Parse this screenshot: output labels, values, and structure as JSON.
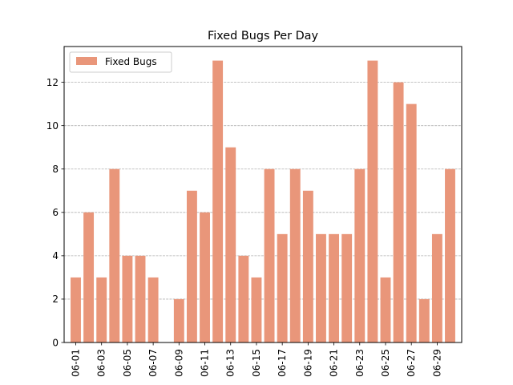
{
  "chart_data": {
    "type": "bar",
    "title": "Fixed Bugs Per Day",
    "xlabel": "",
    "ylabel": "",
    "categories": [
      "06-01",
      "06-02",
      "06-03",
      "06-04",
      "06-05",
      "06-06",
      "06-07",
      "06-08",
      "06-09",
      "06-10",
      "06-11",
      "06-12",
      "06-13",
      "06-14",
      "06-15",
      "06-16",
      "06-17",
      "06-18",
      "06-19",
      "06-20",
      "06-21",
      "06-22",
      "06-23",
      "06-24",
      "06-25",
      "06-26",
      "06-27",
      "06-28",
      "06-29",
      "06-30"
    ],
    "tick_labels": [
      "06-01",
      "06-03",
      "06-05",
      "06-07",
      "06-09",
      "06-11",
      "06-13",
      "06-15",
      "06-17",
      "06-19",
      "06-21",
      "06-23",
      "06-25",
      "06-27",
      "06-29"
    ],
    "series": [
      {
        "name": "Fixed Bugs",
        "color": "#e9967a",
        "values": [
          3,
          6,
          3,
          8,
          4,
          4,
          3,
          0,
          2,
          7,
          6,
          13,
          9,
          4,
          3,
          8,
          5,
          8,
          7,
          5,
          5,
          5,
          8,
          13,
          3,
          12,
          11,
          2,
          5,
          8
        ]
      }
    ],
    "ylim": [
      0,
      13.65
    ],
    "yticks": [
      0,
      2,
      4,
      6,
      8,
      10,
      12
    ],
    "grid": "y-dashed",
    "legend_position": "upper-left"
  }
}
